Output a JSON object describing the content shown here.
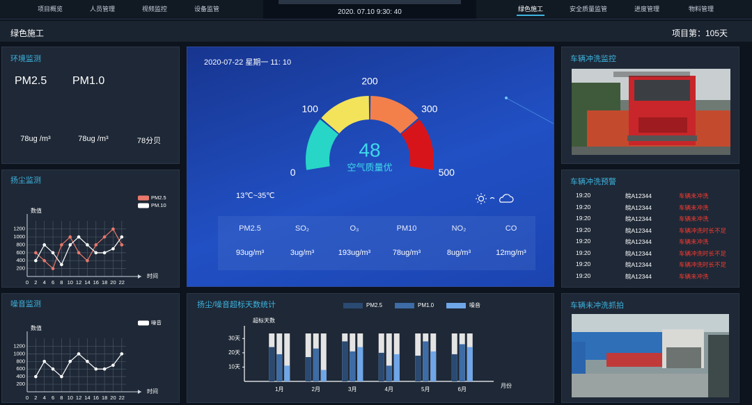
{
  "nav": {
    "left": [
      "项目概览",
      "人员管理",
      "视频监控",
      "设备监管"
    ],
    "datetime": "2020. 07.10  9:30: 40",
    "right": [
      "绿色施工",
      "安全质量监管",
      "进度管理",
      "物料管理"
    ]
  },
  "header": {
    "title": "绿色施工",
    "project_day": "项目第：105天"
  },
  "environment": {
    "title": "环境监测",
    "items": [
      {
        "icon_label": "PM2.5",
        "value": "78ug /m³"
      },
      {
        "icon_label": "PM1.0",
        "value": "78ug /m³"
      },
      {
        "value": "78分贝"
      }
    ]
  },
  "air_quality": {
    "datetime": "2020-07-22 星期一 11: 10",
    "temperature": "13℃~35℃",
    "pollutants": [
      {
        "name": "PM2.5",
        "value": "93ug/m³"
      },
      {
        "name": "SO₂",
        "value": "3ug/m³"
      },
      {
        "name": "O₃",
        "value": "193ug/m³"
      },
      {
        "name": "PM10",
        "value": "78ug/m³"
      },
      {
        "name": "NO₂",
        "value": "8ug/m³"
      },
      {
        "name": "CO",
        "value": "12mg/m³"
      }
    ]
  },
  "wash_monitor": {
    "title": "车辆冲洗监控"
  },
  "wash_warning": {
    "title": "车辆冲洗预警",
    "rows": [
      [
        "19:20",
        "皖A12344",
        "车辆未冲洗"
      ],
      [
        "19:20",
        "皖A12344",
        "车辆未冲洗"
      ],
      [
        "19:20",
        "皖A12344",
        "车辆未冲洗"
      ],
      [
        "19:20",
        "皖A12344",
        "车辆冲洗时长不足"
      ],
      [
        "19:20",
        "皖A12344",
        "车辆未冲洗"
      ],
      [
        "19:20",
        "皖A12344",
        "车辆冲洗时长不足"
      ],
      [
        "19:20",
        "皖A12344",
        "车辆冲洗时长不足"
      ],
      [
        "19:20",
        "皖A12344",
        "车辆未冲洗"
      ]
    ]
  },
  "wash_capture": {
    "title": "车辆未冲洗抓拍"
  },
  "chart_data": [
    {
      "type": "line",
      "title": "扬尘监测",
      "y_label": "数值",
      "x_label": "时间",
      "grid": true,
      "x": [
        2,
        4,
        6,
        8,
        10,
        12,
        14,
        16,
        18,
        20,
        22
      ],
      "series": [
        {
          "name": "PM2.5",
          "color": "#e9786b",
          "values": [
            600,
            400,
            200,
            800,
            1000,
            600,
            400,
            800,
            1000,
            1200,
            800
          ]
        },
        {
          "name": "PM.10",
          "color": "#ffffff",
          "values": [
            400,
            800,
            600,
            300,
            800,
            1000,
            800,
            600,
            600,
            700,
            1000
          ]
        }
      ],
      "xlim": [
        0,
        23
      ],
      "xticks": [
        0,
        2,
        4,
        6,
        8,
        10,
        12,
        14,
        16,
        18,
        20,
        22
      ],
      "ylim": [
        0,
        1300
      ],
      "yticks": [
        200,
        400,
        600,
        800,
        1000,
        1200
      ]
    },
    {
      "type": "line",
      "title": "噪音监测",
      "y_label": "数值",
      "x_label": "时间",
      "grid": true,
      "x": [
        2,
        4,
        6,
        8,
        10,
        12,
        14,
        16,
        18,
        20,
        22
      ],
      "series": [
        {
          "name": "噪音",
          "color": "#ffffff",
          "values": [
            400,
            800,
            600,
            400,
            800,
            1000,
            800,
            600,
            600,
            700,
            1000
          ]
        }
      ],
      "xlim": [
        0,
        23
      ],
      "xticks": [
        0,
        2,
        4,
        6,
        8,
        10,
        12,
        14,
        16,
        18,
        20,
        22
      ],
      "ylim": [
        0,
        1300
      ],
      "yticks": [
        200,
        400,
        600,
        800,
        1000,
        1200
      ]
    },
    {
      "type": "gauge",
      "ticks": [
        0,
        100,
        200,
        300,
        500
      ],
      "colors": [
        "#27d6c6",
        "#f2e35a",
        "#f3804a",
        "#d8141b"
      ],
      "value": 48,
      "label": "空气质量优"
    },
    {
      "type": "bar",
      "title": "扬尘/噪音超标天数统计",
      "y_label": "超标天数",
      "x_label": "月份",
      "categories": [
        "1月",
        "2月",
        "3月",
        "4月",
        "5月",
        "6月"
      ],
      "series": [
        {
          "name": "PM2.5",
          "color": "#2b4a72",
          "values": [
            24,
            17,
            28,
            20,
            18,
            19
          ]
        },
        {
          "name": "PM1.0",
          "color": "#3d6ca6",
          "values": [
            19,
            23,
            21,
            11,
            28,
            26
          ]
        },
        {
          "name": "噪音",
          "color": "#6fa6e8",
          "values": [
            11,
            8,
            24,
            19,
            21,
            24
          ]
        }
      ],
      "ylim": [
        0,
        35
      ],
      "yticks": [
        {
          "value": 10,
          "label": "10天"
        },
        {
          "value": 20,
          "label": "20天"
        },
        {
          "value": 30,
          "label": "30天"
        }
      ]
    }
  ]
}
